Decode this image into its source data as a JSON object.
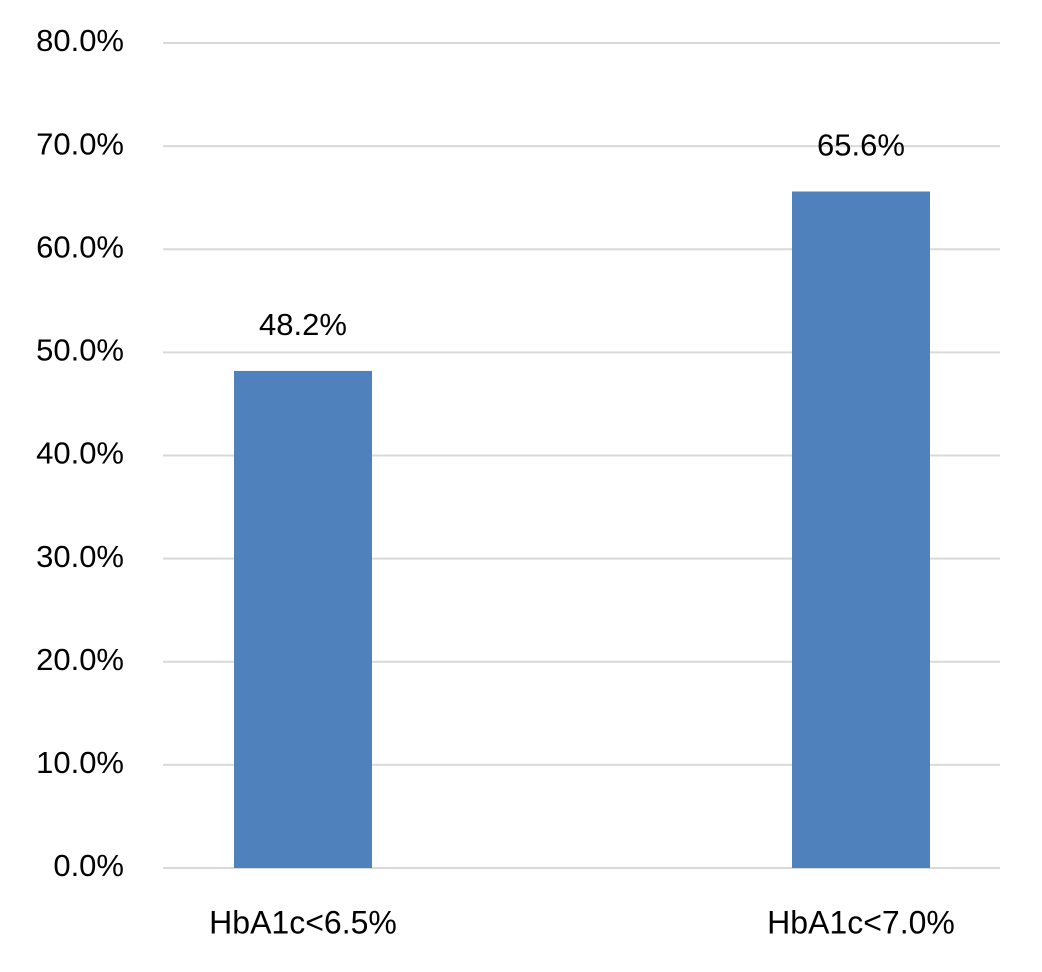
{
  "chart_data": {
    "type": "bar",
    "categories": [
      "HbA1c<6.5%",
      "HbA1c<7.0%"
    ],
    "values": [
      48.2,
      65.6
    ],
    "value_labels": [
      "48.2%",
      "65.6%"
    ],
    "color": "#4f81bd",
    "ylim": [
      0,
      80
    ],
    "yticks": [
      {
        "value": 0,
        "label": "0.0%"
      },
      {
        "value": 10,
        "label": "10.0%"
      },
      {
        "value": 20,
        "label": "20.0%"
      },
      {
        "value": 30,
        "label": "30.0%"
      },
      {
        "value": 40,
        "label": "40.0%"
      },
      {
        "value": 50,
        "label": "50.0%"
      },
      {
        "value": 60,
        "label": "60.0%"
      },
      {
        "value": 70,
        "label": "70.0%"
      },
      {
        "value": 80,
        "label": "80.0%"
      }
    ],
    "grid": true
  }
}
